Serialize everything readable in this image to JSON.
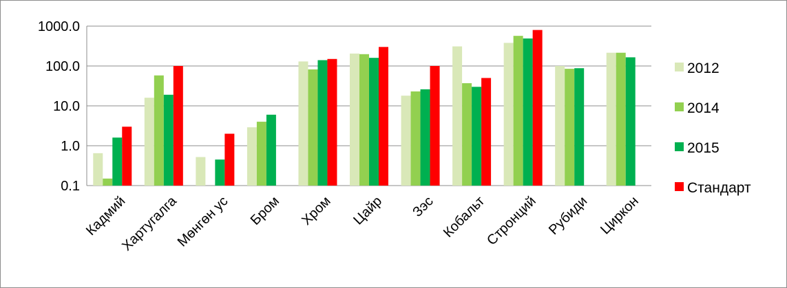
{
  "chart_data": {
    "type": "bar",
    "y_scale": "log",
    "ylim": [
      0.1,
      1000
    ],
    "y_ticks": [
      "0.1",
      "1.0",
      "10.0",
      "100.0",
      "1000.0"
    ],
    "grid": true,
    "legend_position": "right",
    "categories": [
      "Кадмий",
      "Хартугалга",
      "Мөнгөн ус",
      "Бром",
      "Хром",
      "Цайр",
      "Зэс",
      "Кобальт",
      "Стронций",
      "Рубиди",
      "Циркон"
    ],
    "series": [
      {
        "name": "2012",
        "color": "#d9e8b8",
        "values": [
          0.65,
          16,
          0.52,
          2.9,
          130,
          205,
          18,
          310,
          380,
          100,
          215
        ]
      },
      {
        "name": "2014",
        "color": "#92d050",
        "values": [
          0.15,
          58,
          null,
          4.0,
          82,
          198,
          23,
          37,
          570,
          85,
          215
        ]
      },
      {
        "name": "2015",
        "color": "#00b050",
        "values": [
          1.6,
          19,
          0.45,
          6.0,
          140,
          160,
          26,
          30,
          490,
          88,
          165
        ]
      },
      {
        "name": "Стандарт",
        "color": "#ff0000",
        "values": [
          3,
          100,
          2,
          null,
          150,
          300,
          100,
          50,
          800,
          null,
          null
        ]
      }
    ]
  }
}
